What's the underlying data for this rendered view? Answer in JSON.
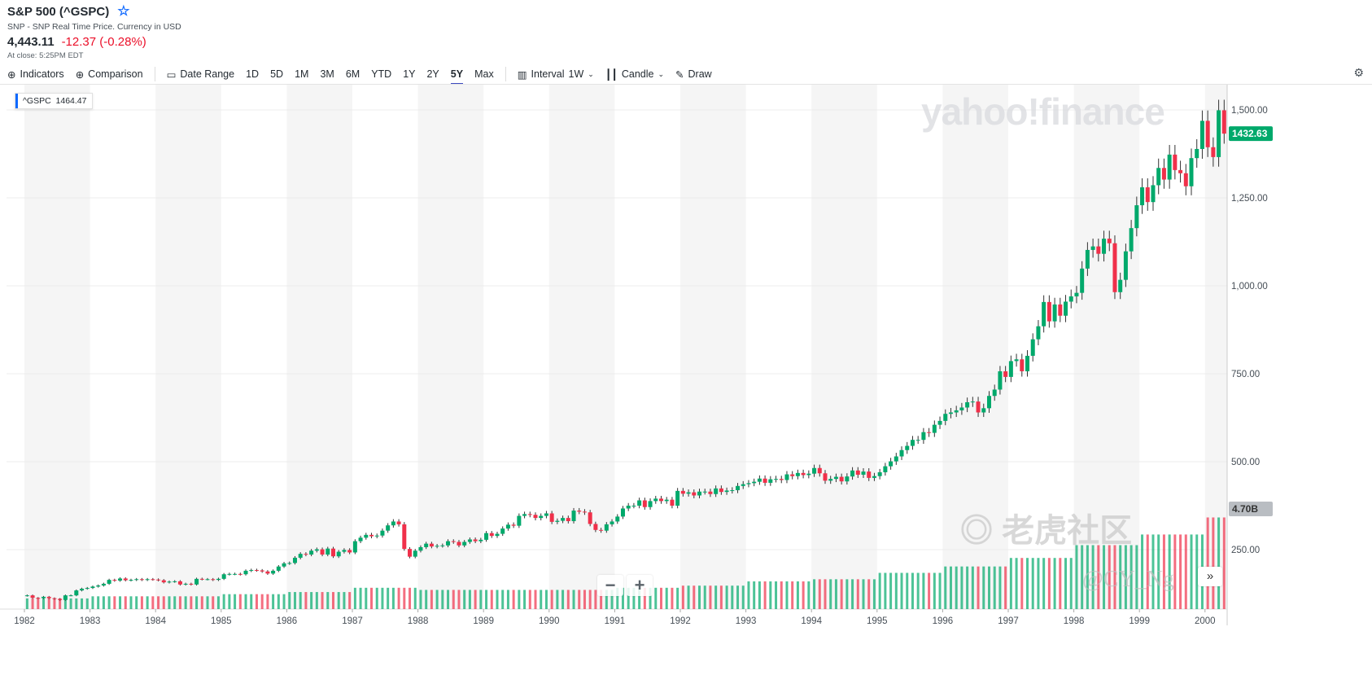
{
  "header": {
    "title": "S&P 500 (^GSPC)",
    "subtitle": "SNP - SNP Real Time Price. Currency in USD",
    "price": "4,443.11",
    "change": "-12.37 (-0.28%)",
    "close_time": "At close: 5:25PM EDT"
  },
  "toolbar": {
    "indicators": "Indicators",
    "comparison": "Comparison",
    "date_range": "Date Range",
    "ranges": [
      "1D",
      "5D",
      "1M",
      "3M",
      "6M",
      "YTD",
      "1Y",
      "2Y",
      "5Y",
      "Max"
    ],
    "active_range": "5Y",
    "interval_label": "Interval",
    "interval": "1W",
    "chart_type": "Candle",
    "draw": "Draw"
  },
  "legend": {
    "symbol": "^GSPC",
    "value": "1464.47"
  },
  "watermarks": {
    "brand": "yahoo!finance",
    "site": "老虎社区",
    "user": "@CY_Ng"
  },
  "colors": {
    "up": "#00a96b",
    "down": "#f0304a",
    "last_price_badge": "#00a96b",
    "volume_badge": "#b9bdc2"
  },
  "chart_data": {
    "type": "candlestick",
    "title": "",
    "x_ticks": [
      "1982",
      "1983",
      "1984",
      "1985",
      "1986",
      "1987",
      "1988",
      "1989",
      "1990",
      "1991",
      "1992",
      "1993",
      "1994",
      "1995",
      "1996",
      "1997",
      "1998",
      "1999",
      "2000"
    ],
    "y_ticks": [
      "250.00",
      "500.00",
      "750.00",
      "1,000.00",
      "1,250.00",
      "1,500.00"
    ],
    "ylim": [
      0,
      1575
    ],
    "last_price": "1432.63",
    "volume_label": "4.70B",
    "grid": true,
    "start": "1982-01",
    "monthly_close": [
      120,
      113,
      112,
      116,
      112,
      110,
      107,
      120,
      120,
      134,
      139,
      141,
      145,
      148,
      153,
      164,
      162,
      168,
      163,
      164,
      166,
      164,
      166,
      165,
      163,
      157,
      159,
      160,
      151,
      153,
      151,
      167,
      166,
      166,
      164,
      167,
      180,
      181,
      181,
      180,
      190,
      192,
      191,
      188,
      182,
      190,
      202,
      211,
      212,
      227,
      238,
      236,
      247,
      251,
      236,
      253,
      231,
      244,
      249,
      242,
      274,
      284,
      292,
      288,
      290,
      304,
      319,
      330,
      322,
      252,
      230,
      247,
      257,
      267,
      259,
      261,
      262,
      274,
      272,
      262,
      272,
      279,
      274,
      278,
      297,
      289,
      295,
      310,
      321,
      318,
      346,
      351,
      349,
      340,
      346,
      353,
      329,
      332,
      340,
      331,
      361,
      358,
      356,
      323,
      306,
      304,
      322,
      330,
      344,
      367,
      375,
      375,
      390,
      371,
      388,
      395,
      388,
      392,
      375,
      417,
      409,
      413,
      404,
      415,
      415,
      408,
      424,
      414,
      418,
      419,
      431,
      436,
      439,
      443,
      452,
      440,
      450,
      451,
      448,
      464,
      459,
      468,
      462,
      466,
      482,
      467,
      446,
      451,
      457,
      444,
      458,
      475,
      463,
      472,
      454,
      459,
      470,
      487,
      501,
      515,
      533,
      545,
      562,
      562,
      584,
      582,
      605,
      616,
      636,
      640,
      646,
      654,
      669,
      671,
      640,
      652,
      687,
      705,
      757,
      741,
      786,
      791,
      757,
      801,
      848,
      885,
      954,
      899,
      947,
      915,
      955,
      970,
      980,
      1049,
      1102,
      1112,
      1091,
      1134,
      1121,
      982,
      1017,
      1098,
      1164,
      1229,
      1280,
      1238,
      1286,
      1335,
      1302,
      1373,
      1329,
      1320,
      1283,
      1363,
      1389,
      1469,
      1394,
      1366,
      1499,
      1432.63
    ],
    "weekly_volume_billions_by_year": [
      0.5,
      0.6,
      0.6,
      0.7,
      0.8,
      1.0,
      0.9,
      0.9,
      0.9,
      1.0,
      1.1,
      1.3,
      1.4,
      1.7,
      2.0,
      2.4,
      3.0,
      3.5,
      4.3
    ]
  }
}
